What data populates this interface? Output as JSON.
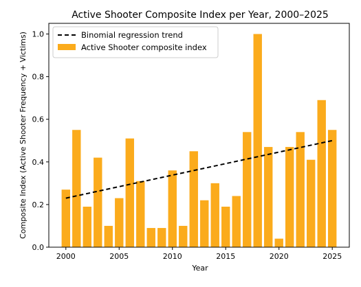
{
  "chart_data": {
    "type": "bar",
    "title": "Active Shooter Composite Index per Year, 2000–2025",
    "xlabel": "Year",
    "ylabel": "Composite Index (Active Shooter Frequency + Victims)",
    "x": [
      2000,
      2001,
      2002,
      2003,
      2004,
      2005,
      2006,
      2007,
      2008,
      2009,
      2010,
      2011,
      2012,
      2013,
      2014,
      2015,
      2016,
      2017,
      2018,
      2019,
      2020,
      2021,
      2022,
      2023,
      2024,
      2025
    ],
    "values": [
      0.27,
      0.55,
      0.19,
      0.42,
      0.1,
      0.23,
      0.51,
      0.31,
      0.09,
      0.09,
      0.36,
      0.1,
      0.45,
      0.22,
      0.3,
      0.19,
      0.24,
      0.54,
      1.0,
      0.47,
      0.04,
      0.47,
      0.54,
      0.41,
      0.69,
      0.55
    ],
    "trend": {
      "start": [
        2000,
        0.23
      ],
      "end": [
        2025,
        0.5
      ]
    },
    "xlim": [
      1998.4,
      2026.6
    ],
    "ylim": [
      0,
      1.05
    ],
    "xticks": [
      2000,
      2005,
      2010,
      2015,
      2020,
      2025
    ],
    "yticks": [
      0.0,
      0.2,
      0.4,
      0.6,
      0.8,
      1.0
    ],
    "xtick_labels": [
      "2000",
      "2005",
      "2010",
      "2015",
      "2020",
      "2025"
    ],
    "ytick_labels": [
      "0.0",
      "0.2",
      "0.4",
      "0.6",
      "0.8",
      "1.0"
    ],
    "legend": {
      "placement": "top-left",
      "entries": [
        "Binomial regression trend",
        "Active Shooter composite index"
      ]
    },
    "colors": {
      "bar": "#FBAB1C",
      "trend": "#000000"
    },
    "grid": false
  }
}
